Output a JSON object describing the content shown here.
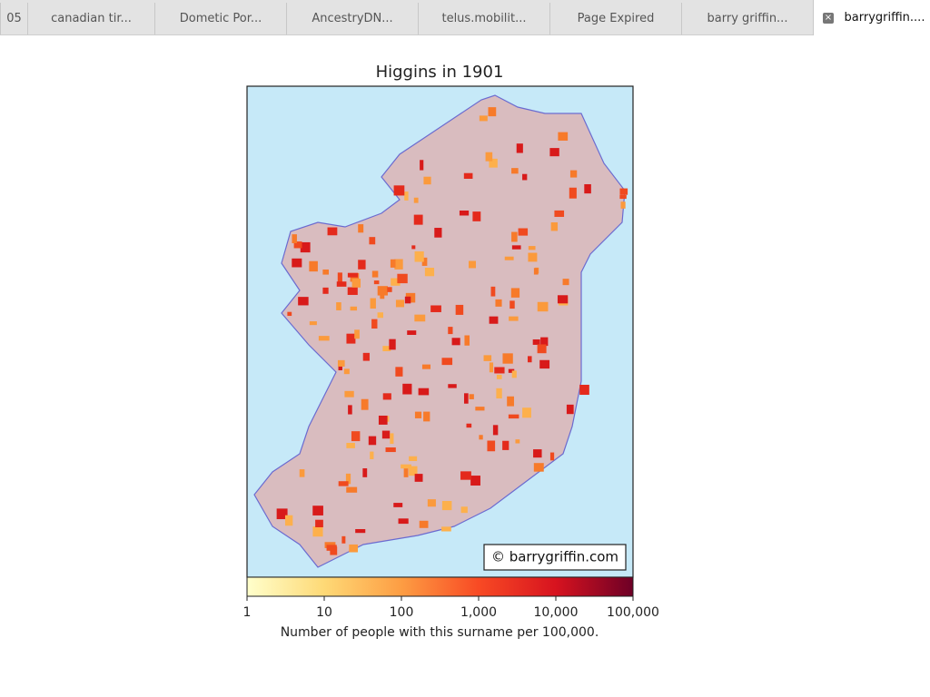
{
  "tabs": [
    "05",
    "canadian tir...",
    "Dometic Por...",
    "AncestryDN...",
    "telus.mobilit...",
    "Page Expired",
    "barry griffin...",
    "barrygriffin...."
  ],
  "map": {
    "title": "Higgins in 1901",
    "credit": "© barrygriffin.com",
    "colorbar": {
      "ticks": [
        "1",
        "10",
        "100",
        "1,000",
        "10,000",
        "100,000"
      ],
      "label": "Number of people with this surname per 100,000."
    }
  }
}
